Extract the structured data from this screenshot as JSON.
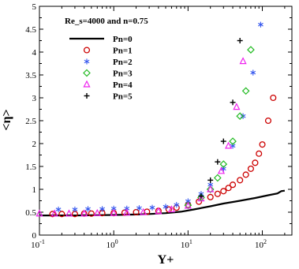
{
  "chart_data": {
    "type": "scatter",
    "xscale": "log",
    "xlim": [
      0.1,
      250
    ],
    "ylim": [
      0,
      5
    ],
    "xlabel": "Y+",
    "ylabel": "<η>",
    "annotation": "Re_s=4000 and n=0.75",
    "grid": false,
    "legend_position": "top-left",
    "x_ticks": [
      {
        "value": 0.1,
        "base": "10",
        "exp": "-1"
      },
      {
        "value": 1,
        "base": "10",
        "exp": "0"
      },
      {
        "value": 10,
        "base": "10",
        "exp": "1"
      },
      {
        "value": 100,
        "base": "10",
        "exp": "2"
      }
    ],
    "y_ticks": [
      0,
      0.5,
      1,
      1.5,
      2,
      2.5,
      3,
      3.5,
      4,
      4.5,
      5
    ],
    "y_tick_labels": [
      "0",
      "0.5",
      "1",
      "1.5",
      "2",
      "2.5",
      "3",
      "3.5",
      "4",
      "4.5",
      "5"
    ],
    "series": [
      {
        "name": "Pn=0",
        "marker": "line",
        "color": "#000000",
        "x": [
          0.1,
          0.3,
          1,
          2,
          3,
          5,
          8,
          12,
          20,
          30,
          50,
          80,
          120,
          160,
          180,
          200
        ],
        "y": [
          0.43,
          0.43,
          0.44,
          0.45,
          0.46,
          0.48,
          0.51,
          0.56,
          0.63,
          0.69,
          0.75,
          0.81,
          0.87,
          0.91,
          0.96,
          0.97
        ]
      },
      {
        "name": "Pn=1",
        "marker": "circle",
        "color": "#cc0000",
        "x": [
          0.15,
          0.2,
          0.3,
          0.4,
          0.5,
          0.7,
          1,
          1.4,
          2,
          2.8,
          4,
          5.5,
          7,
          10,
          14,
          20,
          25,
          30,
          35,
          40,
          50,
          60,
          70,
          80,
          90,
          100,
          120,
          140
        ],
        "y": [
          0.46,
          0.46,
          0.46,
          0.47,
          0.47,
          0.48,
          0.48,
          0.49,
          0.5,
          0.51,
          0.53,
          0.56,
          0.6,
          0.66,
          0.73,
          0.83,
          0.9,
          0.96,
          1.03,
          1.1,
          1.2,
          1.32,
          1.45,
          1.58,
          1.78,
          1.98,
          2.5,
          3.0
        ]
      },
      {
        "name": "Pn=2",
        "marker": "asterisk",
        "color": "#3355ee",
        "x": [
          0.18,
          0.3,
          0.45,
          0.7,
          1,
          1.5,
          2.2,
          3.3,
          5,
          7,
          10,
          15,
          20,
          30,
          40,
          55,
          75,
          95
        ],
        "y": [
          0.56,
          0.56,
          0.57,
          0.57,
          0.58,
          0.58,
          0.59,
          0.6,
          0.62,
          0.66,
          0.74,
          0.9,
          1.1,
          1.45,
          1.95,
          2.6,
          3.55,
          4.6
        ]
      },
      {
        "name": "Pn=3",
        "marker": "diamond",
        "color": "#22bb22",
        "x": [
          10,
          15,
          20,
          25,
          30,
          40,
          50,
          60,
          70
        ],
        "y": [
          0.65,
          0.82,
          1.0,
          1.25,
          1.55,
          2.05,
          2.6,
          3.15,
          4.05
        ]
      },
      {
        "name": "Pn=4",
        "marker": "triangle",
        "color": "#ee22ee",
        "x": [
          0.1,
          0.16,
          0.25,
          0.4,
          0.6,
          1,
          1.5,
          2.5,
          4,
          6,
          10,
          15,
          20,
          28,
          35,
          45,
          55
        ],
        "y": [
          0.47,
          0.47,
          0.47,
          0.47,
          0.48,
          0.48,
          0.49,
          0.5,
          0.52,
          0.56,
          0.64,
          0.8,
          1.0,
          1.4,
          1.95,
          2.8,
          3.8
        ]
      },
      {
        "name": "Pn=5",
        "marker": "plus",
        "color": "#000000",
        "x": [
          15,
          20,
          25,
          30,
          40,
          50
        ],
        "y": [
          0.85,
          1.2,
          1.6,
          2.05,
          2.9,
          4.25
        ]
      }
    ]
  }
}
